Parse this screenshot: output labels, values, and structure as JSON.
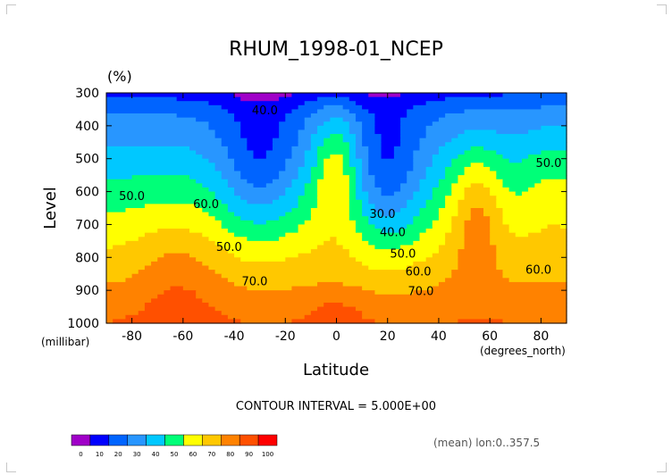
{
  "chart_data": {
    "type": "heatmap",
    "title": "RHUM_1998-01_NCEP",
    "units_label": "(%)",
    "xlabel": "Latitude",
    "ylabel": "Level",
    "x_unit_note": "(degrees_north)",
    "y_unit_note": "(millibar)",
    "xlim": [
      -90,
      90
    ],
    "ylim": [
      1000,
      300
    ],
    "x_ticks": [
      "-80",
      "-60",
      "-40",
      "-20",
      "0",
      "20",
      "40",
      "60",
      "80"
    ],
    "x_tick_values": [
      -80,
      -60,
      -40,
      -20,
      0,
      20,
      40,
      60,
      80
    ],
    "y_ticks": [
      "300",
      "400",
      "500",
      "600",
      "700",
      "800",
      "900",
      "1000"
    ],
    "y_tick_values": [
      300,
      400,
      500,
      600,
      700,
      800,
      900,
      1000
    ],
    "contour_interval_text": "CONTOUR INTERVAL = 5.000E+00",
    "mean_note": "(mean) lon:0..357.5",
    "contour_labels": [
      {
        "text": "40.0",
        "lat": -28,
        "lev": 365
      },
      {
        "text": "50.0",
        "lat": -80,
        "lev": 625
      },
      {
        "text": "60.0",
        "lat": -51,
        "lev": 650
      },
      {
        "text": "50.0",
        "lat": -42,
        "lev": 780
      },
      {
        "text": "70.0",
        "lat": -32,
        "lev": 885
      },
      {
        "text": "30.0",
        "lat": 18,
        "lev": 680
      },
      {
        "text": "40.0",
        "lat": 22,
        "lev": 735
      },
      {
        "text": "50.0",
        "lat": 26,
        "lev": 800
      },
      {
        "text": "60.0",
        "lat": 32,
        "lev": 855
      },
      {
        "text": "70.0",
        "lat": 33,
        "lev": 915
      },
      {
        "text": "50.0",
        "lat": 83,
        "lev": 525
      },
      {
        "text": "60.0",
        "lat": 79,
        "lev": 850
      }
    ],
    "colorbar": {
      "ticks": [
        "0",
        "10",
        "20",
        "30",
        "40",
        "50",
        "60",
        "70",
        "80",
        "90",
        "100"
      ],
      "colors": [
        "#a000c8",
        "#0000ff",
        "#0064ff",
        "#2896ff",
        "#00c8ff",
        "#00ff78",
        "#ffff00",
        "#ffc800",
        "#ff8200",
        "#ff5000",
        "#ff0000"
      ]
    },
    "level_colors": [
      {
        "min": 0,
        "color": "#a000c8"
      },
      {
        "min": 10,
        "color": "#0000ff"
      },
      {
        "min": 20,
        "color": "#0064ff"
      },
      {
        "min": 30,
        "color": "#2896ff"
      },
      {
        "min": 40,
        "color": "#00c8ff"
      },
      {
        "min": 50,
        "color": "#00ff78"
      },
      {
        "min": 60,
        "color": "#ffff00"
      },
      {
        "min": 70,
        "color": "#ffc800"
      },
      {
        "min": 80,
        "color": "#ff8200"
      },
      {
        "min": 90,
        "color": "#ff5000"
      },
      {
        "min": 100,
        "color": "#ff0000"
      }
    ]
  }
}
